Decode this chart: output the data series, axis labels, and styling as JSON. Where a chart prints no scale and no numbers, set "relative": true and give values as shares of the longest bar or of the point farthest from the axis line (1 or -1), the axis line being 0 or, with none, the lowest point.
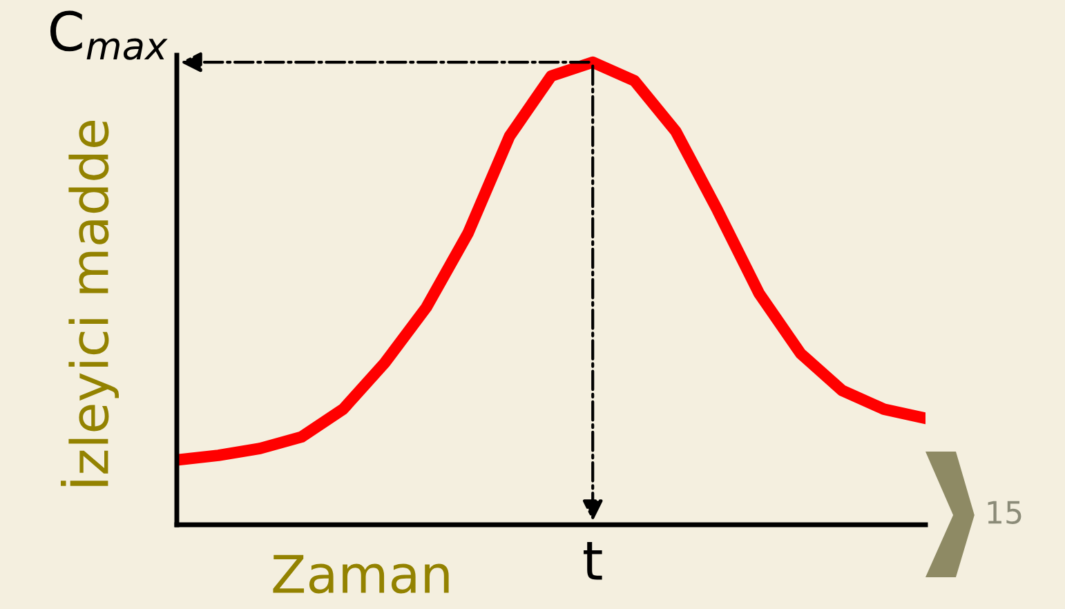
{
  "chart_data": {
    "type": "line",
    "relative": true,
    "ylabel": "İzleyici madde",
    "xlabel": "Zaman",
    "categories": [
      null,
      null,
      null,
      null,
      null,
      null,
      null,
      null,
      null,
      null,
      null,
      null,
      null,
      null,
      null,
      null,
      null,
      null,
      null
    ],
    "series": [
      {
        "color": "#ff0000",
        "values": [
          0.14,
          0.15,
          0.165,
          0.19,
          0.25,
          0.35,
          0.47,
          0.63,
          0.84,
          0.97,
          1.0,
          0.96,
          0.85,
          0.68,
          0.5,
          0.37,
          0.29,
          0.25,
          0.23
        ]
      }
    ],
    "annotations": [
      "C$_{max}$",
      "t",
      "15"
    ],
    "marker": "none",
    "line_style": "solid",
    "legend": false
  }
}
